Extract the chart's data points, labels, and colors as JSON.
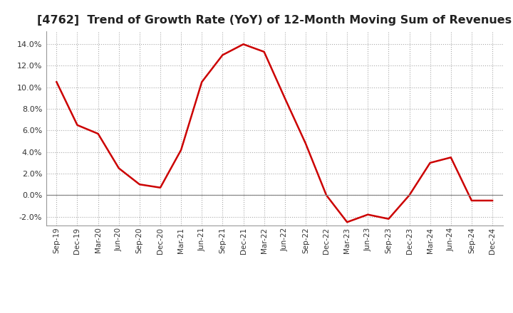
{
  "title": "[4762]  Trend of Growth Rate (YoY) of 12-Month Moving Sum of Revenues",
  "title_fontsize": 11.5,
  "line_color": "#cc0000",
  "background_color": "#ffffff",
  "grid_color": "#aaaaaa",
  "zero_line_color": "#888888",
  "ylim": [
    -0.028,
    0.152
  ],
  "yticks": [
    -0.02,
    0.0,
    0.02,
    0.04,
    0.06,
    0.08,
    0.1,
    0.12,
    0.14
  ],
  "x_labels": [
    "Sep-19",
    "Dec-19",
    "Mar-20",
    "Jun-20",
    "Sep-20",
    "Dec-20",
    "Mar-21",
    "Jun-21",
    "Sep-21",
    "Dec-21",
    "Mar-22",
    "Jun-22",
    "Sep-22",
    "Dec-22",
    "Mar-23",
    "Jun-23",
    "Sep-23",
    "Dec-23",
    "Mar-24",
    "Jun-24",
    "Sep-24",
    "Dec-24"
  ],
  "y_values": [
    0.105,
    0.065,
    0.057,
    0.025,
    0.01,
    0.007,
    0.042,
    0.105,
    0.13,
    0.14,
    0.133,
    0.09,
    0.048,
    -0.0,
    -0.025,
    -0.018,
    -0.022,
    0.0,
    0.03,
    0.035,
    -0.005,
    -0.005
  ]
}
